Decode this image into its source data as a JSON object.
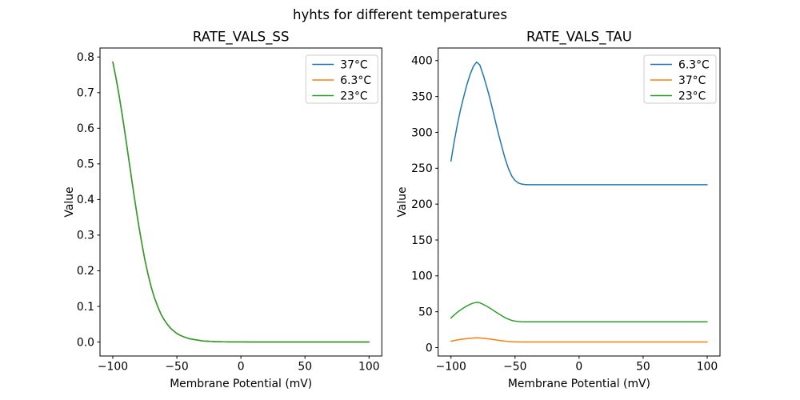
{
  "figure": {
    "title": "hyhts for different temperatures",
    "background_color": "#ffffff",
    "text_color": "#000000",
    "axes_color": "#000000",
    "legend_border_color": "#cccccc"
  },
  "chart_data": [
    {
      "type": "line",
      "title": "RATE_VALS_SS",
      "xlabel": "Membrane Potential (mV)",
      "ylabel": "Value",
      "xlim": [
        -110,
        110
      ],
      "ylim": [
        -0.0393,
        0.8253
      ],
      "xticks": [
        -100,
        -50,
        0,
        50,
        100
      ],
      "xtick_labels": [
        "−100",
        "−50",
        "0",
        "50",
        "100"
      ],
      "yticks": [
        0.0,
        0.1,
        0.2,
        0.3,
        0.4,
        0.5,
        0.6,
        0.7,
        0.8
      ],
      "ytick_labels": [
        "0.0",
        "0.1",
        "0.2",
        "0.3",
        "0.4",
        "0.5",
        "0.6",
        "0.7",
        "0.8"
      ],
      "grid": false,
      "legend": {
        "loc": "upper right",
        "entries": [
          "37°C",
          "6.3°C",
          "23°C"
        ]
      },
      "x": [
        -100,
        -97.5,
        -95,
        -92.5,
        -90,
        -87.5,
        -85,
        -82.5,
        -80,
        -77.5,
        -75,
        -72.5,
        -70,
        -67.5,
        -65,
        -62.5,
        -60,
        -57.5,
        -55,
        -52.5,
        -50,
        -47.5,
        -45,
        -42.5,
        -40,
        -30,
        -20,
        -10,
        0,
        10,
        20,
        30,
        40,
        50,
        60,
        70,
        80,
        90,
        100
      ],
      "series": [
        {
          "name": "37°C",
          "color": "#1f77b4",
          "values": [
            0.786,
            0.741,
            0.69,
            0.634,
            0.574,
            0.512,
            0.45,
            0.39,
            0.332,
            0.28,
            0.231,
            0.19,
            0.154,
            0.124,
            0.1,
            0.079,
            0.063,
            0.05,
            0.039,
            0.031,
            0.024,
            0.019,
            0.015,
            0.012,
            0.009,
            0.003,
            0.001,
            0.0004,
            0.0002,
            0.0001,
            0.0001,
            0,
            0,
            0,
            0,
            0,
            0,
            0,
            0
          ]
        },
        {
          "name": "6.3°C",
          "color": "#ff7f0e",
          "values": [
            0.786,
            0.741,
            0.69,
            0.634,
            0.574,
            0.512,
            0.45,
            0.39,
            0.332,
            0.28,
            0.231,
            0.19,
            0.154,
            0.124,
            0.1,
            0.079,
            0.063,
            0.05,
            0.039,
            0.031,
            0.024,
            0.019,
            0.015,
            0.012,
            0.009,
            0.003,
            0.001,
            0.0004,
            0.0002,
            0.0001,
            0.0001,
            0,
            0,
            0,
            0,
            0,
            0,
            0,
            0
          ]
        },
        {
          "name": "23°C",
          "color": "#2ca02c",
          "values": [
            0.786,
            0.741,
            0.69,
            0.634,
            0.574,
            0.512,
            0.45,
            0.39,
            0.332,
            0.28,
            0.231,
            0.19,
            0.154,
            0.124,
            0.1,
            0.079,
            0.063,
            0.05,
            0.039,
            0.031,
            0.024,
            0.019,
            0.015,
            0.012,
            0.009,
            0.003,
            0.001,
            0.0004,
            0.0002,
            0.0001,
            0.0001,
            0,
            0,
            0,
            0,
            0,
            0,
            0,
            0
          ]
        }
      ]
    },
    {
      "type": "line",
      "title": "RATE_VALS_TAU",
      "xlabel": "Membrane Potential (mV)",
      "ylabel": "Value",
      "xlim": [
        -110,
        110
      ],
      "ylim": [
        -11.7,
        417.6
      ],
      "xticks": [
        -100,
        -50,
        0,
        50,
        100
      ],
      "xtick_labels": [
        "−100",
        "−50",
        "0",
        "50",
        "100"
      ],
      "yticks": [
        0,
        50,
        100,
        150,
        200,
        250,
        300,
        350,
        400
      ],
      "ytick_labels": [
        "0",
        "50",
        "100",
        "150",
        "200",
        "250",
        "300",
        "350",
        "400"
      ],
      "grid": false,
      "legend": {
        "loc": "upper right",
        "entries": [
          "6.3°C",
          "37°C",
          "23°C"
        ]
      },
      "x": [
        -100,
        -97.5,
        -95,
        -92.5,
        -90,
        -87.5,
        -85,
        -82.5,
        -80,
        -77.5,
        -75,
        -72.5,
        -70,
        -67.5,
        -65,
        -62.5,
        -60,
        -57.5,
        -55,
        -52.5,
        -50,
        -47.5,
        -45,
        -42.5,
        -40,
        -30,
        -20,
        -10,
        0,
        10,
        20,
        30,
        40,
        50,
        60,
        70,
        80,
        90,
        100
      ],
      "series": [
        {
          "name": "6.3°C",
          "color": "#1f77b4",
          "values": [
            260,
            287,
            311,
            332,
            350,
            367,
            381,
            392,
            398,
            394,
            381,
            366,
            350,
            332,
            313,
            295,
            278,
            262,
            249,
            239,
            233,
            229.5,
            228,
            227.3,
            227,
            227,
            227,
            227,
            227,
            227,
            227,
            227,
            227,
            227,
            227,
            227,
            227,
            227,
            227
          ]
        },
        {
          "name": "37°C",
          "color": "#ff7f0e",
          "values": [
            8.9,
            9.8,
            10.7,
            11.4,
            12.0,
            12.6,
            13.0,
            13.4,
            13.6,
            13.5,
            13.0,
            12.5,
            12.0,
            11.4,
            10.7,
            10.1,
            9.5,
            9.0,
            8.5,
            8.2,
            8.0,
            7.9,
            7.8,
            7.8,
            7.8,
            7.8,
            7.8,
            7.8,
            7.8,
            7.8,
            7.8,
            7.8,
            7.8,
            7.8,
            7.8,
            7.8,
            7.8,
            7.8,
            7.8
          ]
        },
        {
          "name": "23°C",
          "color": "#2ca02c",
          "values": [
            41.2,
            45.5,
            49.3,
            52.6,
            55.5,
            58.2,
            60.4,
            62.1,
            63.1,
            62.4,
            60.4,
            58.0,
            55.5,
            52.6,
            49.6,
            46.8,
            44.1,
            41.5,
            39.5,
            37.9,
            36.9,
            36.4,
            36.1,
            36.0,
            36.0,
            36,
            36,
            36,
            36,
            36,
            36,
            36,
            36,
            36,
            36,
            36,
            36,
            36,
            36
          ]
        }
      ]
    }
  ]
}
